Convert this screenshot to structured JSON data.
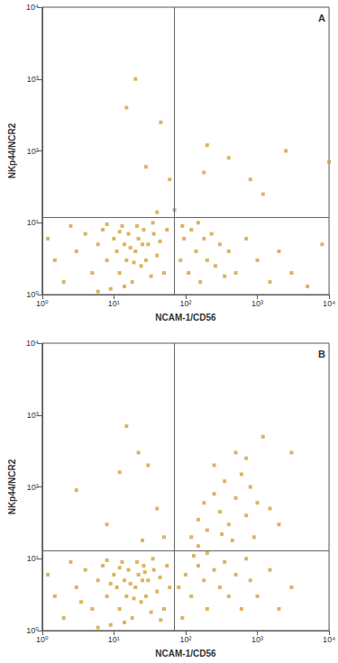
{
  "chart_data": [
    {
      "type": "scatter",
      "label": "A",
      "x_label": "NCAM-1/CD56",
      "y_label": "NKp44/NCR2",
      "color": "#d4a03a",
      "marker": "square",
      "log": true,
      "grid": false,
      "xlim": [
        1,
        10000
      ],
      "ylim": [
        1,
        10000
      ],
      "xticks": [
        {
          "value": 1,
          "label": "10⁰"
        },
        {
          "value": 10,
          "label": "10¹"
        },
        {
          "value": 100,
          "label": "10²"
        },
        {
          "value": 1000,
          "label": "10³"
        },
        {
          "value": 10000,
          "label": "10⁴"
        }
      ],
      "yticks": [
        {
          "value": 1,
          "label": "10⁰"
        },
        {
          "value": 10,
          "label": "10¹"
        },
        {
          "value": 100,
          "label": "10²"
        },
        {
          "value": 1000,
          "label": "10³"
        },
        {
          "value": 10000,
          "label": "10⁴"
        }
      ],
      "gates": {
        "x": 70,
        "y": 12
      },
      "points": [
        [
          2,
          1.5
        ],
        [
          3,
          4
        ],
        [
          4,
          7
        ],
        [
          5,
          2
        ],
        [
          6,
          5
        ],
        [
          7,
          8
        ],
        [
          8,
          3
        ],
        [
          9,
          1.2
        ],
        [
          10,
          6
        ],
        [
          11,
          4
        ],
        [
          12,
          2
        ],
        [
          13,
          9
        ],
        [
          14,
          5
        ],
        [
          15,
          3
        ],
        [
          16,
          7
        ],
        [
          18,
          1.5
        ],
        [
          20,
          4
        ],
        [
          22,
          6
        ],
        [
          24,
          2.5
        ],
        [
          26,
          8
        ],
        [
          28,
          3
        ],
        [
          30,
          5
        ],
        [
          33,
          1.8
        ],
        [
          36,
          7
        ],
        [
          40,
          3.5
        ],
        [
          44,
          5.5
        ],
        [
          50,
          2
        ],
        [
          55,
          8
        ],
        [
          8,
          9.5
        ],
        [
          12,
          7.5
        ],
        [
          17,
          4.5
        ],
        [
          19,
          2.8
        ],
        [
          21,
          9
        ],
        [
          25,
          5
        ],
        [
          14,
          1.3
        ],
        [
          1.2,
          6
        ],
        [
          1.5,
          3
        ],
        [
          2.5,
          9
        ],
        [
          6,
          1.1
        ],
        [
          35,
          10
        ],
        [
          85,
          3
        ],
        [
          95,
          6
        ],
        [
          110,
          2
        ],
        [
          120,
          8
        ],
        [
          140,
          4
        ],
        [
          160,
          1.5
        ],
        [
          180,
          6
        ],
        [
          200,
          3
        ],
        [
          230,
          7
        ],
        [
          260,
          2.5
        ],
        [
          300,
          5
        ],
        [
          350,
          1.8
        ],
        [
          90,
          9
        ],
        [
          150,
          10
        ],
        [
          400,
          4
        ],
        [
          500,
          2
        ],
        [
          700,
          6
        ],
        [
          1000,
          3
        ],
        [
          1500,
          1.5
        ],
        [
          2000,
          4
        ],
        [
          3000,
          2
        ],
        [
          5000,
          1.3
        ],
        [
          8000,
          5
        ],
        [
          20,
          1000
        ],
        [
          15,
          400
        ],
        [
          45,
          250
        ],
        [
          28,
          60
        ],
        [
          60,
          40
        ],
        [
          200,
          120
        ],
        [
          400,
          80
        ],
        [
          180,
          50
        ],
        [
          2500,
          100
        ],
        [
          10000,
          70
        ],
        [
          1200,
          25
        ],
        [
          800,
          40
        ],
        [
          70,
          15
        ],
        [
          40,
          14
        ]
      ]
    },
    {
      "type": "scatter",
      "label": "B",
      "x_label": "NCAM-1/CD56",
      "y_label": "NKp44/NCR2",
      "color": "#d4a03a",
      "marker": "square",
      "log": true,
      "grid": false,
      "xlim": [
        1,
        10000
      ],
      "ylim": [
        1,
        10000
      ],
      "xticks": [
        {
          "value": 1,
          "label": "10⁰"
        },
        {
          "value": 10,
          "label": "10¹"
        },
        {
          "value": 100,
          "label": "10²"
        },
        {
          "value": 1000,
          "label": "10³"
        },
        {
          "value": 10000,
          "label": "10⁴"
        }
      ],
      "yticks": [
        {
          "value": 1,
          "label": "10⁰"
        },
        {
          "value": 10,
          "label": "10¹"
        },
        {
          "value": 100,
          "label": "10²"
        },
        {
          "value": 1000,
          "label": "10³"
        },
        {
          "value": 10000,
          "label": "10⁴"
        }
      ],
      "gates": {
        "x": 70,
        "y": 13
      },
      "points": [
        [
          2,
          1.5
        ],
        [
          3,
          4
        ],
        [
          4,
          7
        ],
        [
          5,
          2
        ],
        [
          6,
          5
        ],
        [
          7,
          8
        ],
        [
          8,
          3
        ],
        [
          9,
          1.2
        ],
        [
          10,
          6
        ],
        [
          11,
          4
        ],
        [
          12,
          2
        ],
        [
          13,
          9
        ],
        [
          14,
          5
        ],
        [
          15,
          3
        ],
        [
          16,
          7
        ],
        [
          18,
          1.5
        ],
        [
          20,
          4
        ],
        [
          22,
          6
        ],
        [
          24,
          2.5
        ],
        [
          26,
          8
        ],
        [
          28,
          3
        ],
        [
          30,
          5
        ],
        [
          33,
          1.8
        ],
        [
          36,
          7
        ],
        [
          40,
          3.5
        ],
        [
          44,
          5.5
        ],
        [
          50,
          2
        ],
        [
          55,
          8
        ],
        [
          8,
          9.5
        ],
        [
          12,
          7.5
        ],
        [
          17,
          4.5
        ],
        [
          19,
          2.8
        ],
        [
          21,
          9
        ],
        [
          25,
          5
        ],
        [
          14,
          1.3
        ],
        [
          1.2,
          6
        ],
        [
          1.5,
          3
        ],
        [
          2.5,
          9
        ],
        [
          6,
          1.1
        ],
        [
          35,
          10
        ],
        [
          3.5,
          2.5
        ],
        [
          9,
          4.5
        ],
        [
          27,
          6.5
        ],
        [
          45,
          1.4
        ],
        [
          60,
          4
        ],
        [
          120,
          20
        ],
        [
          150,
          35
        ],
        [
          180,
          60
        ],
        [
          200,
          25
        ],
        [
          250,
          80
        ],
        [
          300,
          45
        ],
        [
          350,
          120
        ],
        [
          400,
          30
        ],
        [
          500,
          70
        ],
        [
          600,
          150
        ],
        [
          700,
          40
        ],
        [
          800,
          100
        ],
        [
          900,
          20
        ],
        [
          1000,
          60
        ],
        [
          250,
          200
        ],
        [
          500,
          300
        ],
        [
          450,
          18
        ],
        [
          320,
          22
        ],
        [
          150,
          15
        ],
        [
          700,
          250
        ],
        [
          1500,
          50
        ],
        [
          2000,
          30
        ],
        [
          3000,
          300
        ],
        [
          1200,
          500
        ],
        [
          15,
          700
        ],
        [
          22,
          300
        ],
        [
          30,
          200
        ],
        [
          12,
          160
        ],
        [
          3,
          90
        ],
        [
          40,
          50
        ],
        [
          8,
          30
        ],
        [
          50,
          20
        ],
        [
          25,
          18
        ],
        [
          80,
          4
        ],
        [
          100,
          6
        ],
        [
          120,
          3
        ],
        [
          150,
          8
        ],
        [
          180,
          5
        ],
        [
          200,
          2
        ],
        [
          250,
          7
        ],
        [
          300,
          4
        ],
        [
          350,
          9
        ],
        [
          400,
          3
        ],
        [
          500,
          6
        ],
        [
          600,
          2
        ],
        [
          800,
          5
        ],
        [
          1000,
          3
        ],
        [
          1500,
          7
        ],
        [
          2000,
          2
        ],
        [
          3000,
          4
        ],
        [
          90,
          1.5
        ],
        [
          130,
          11
        ],
        [
          700,
          10
        ],
        [
          200,
          12
        ]
      ]
    }
  ]
}
